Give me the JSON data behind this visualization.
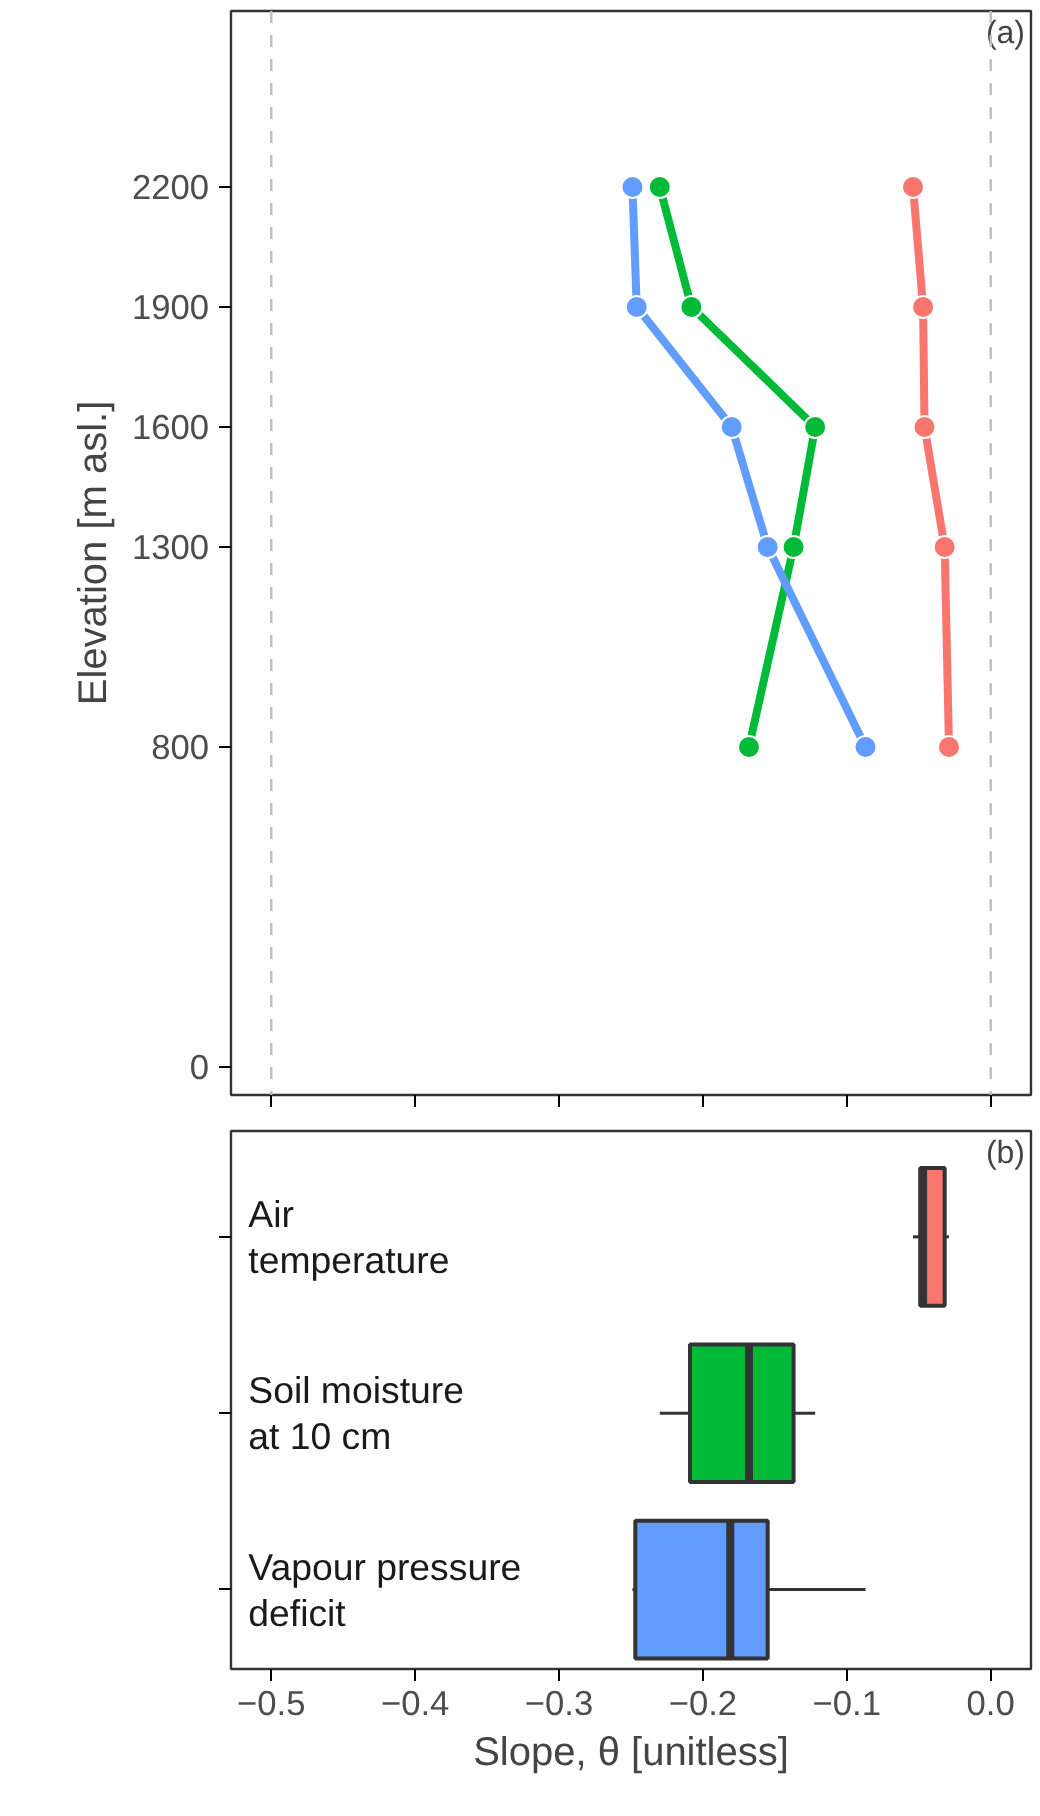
{
  "chart_data": [
    {
      "type": "line",
      "ylabel": "Elevation [m asl.]",
      "annotations": [
        "(a)"
      ],
      "marker": "circle",
      "line_style": "solid",
      "grid": false,
      "tick_labels": "y",
      "xlim": [
        -0.528,
        0.028
      ],
      "xticks": [
        {
          "value": -0.5,
          "label": null
        },
        {
          "value": -0.4,
          "label": null
        },
        {
          "value": -0.3,
          "label": null
        },
        {
          "value": -0.2,
          "label": null
        },
        {
          "value": -0.1,
          "label": null
        },
        {
          "value": 0,
          "label": null
        }
      ],
      "ylim": [
        -70,
        2640
      ],
      "yticks": [
        0,
        800,
        1300,
        1600,
        1900,
        2200
      ],
      "ref_lines": [
        {
          "axis": "x",
          "value": -0.5,
          "color": "#bfbfbf",
          "line_style": "dashed"
        },
        {
          "axis": "x",
          "value": 0,
          "color": "#bfbfbf",
          "line_style": "dashed"
        }
      ],
      "series": [
        {
          "color": "#f8766d",
          "x": [
            -0.054,
            -0.047,
            -0.046,
            -0.032,
            -0.029
          ],
          "values": [
            2200,
            1900,
            1600,
            1300,
            800
          ]
        },
        {
          "color": "#00ba38",
          "x": [
            -0.23,
            -0.208,
            -0.122,
            -0.137,
            -0.168
          ],
          "values": [
            2200,
            1900,
            1600,
            1300,
            800
          ]
        },
        {
          "color": "#619cff",
          "x": [
            -0.249,
            -0.246,
            -0.18,
            -0.155,
            -0.087
          ],
          "values": [
            2200,
            1900,
            1600,
            1300,
            800
          ]
        }
      ]
    },
    {
      "type": "box",
      "orientation": "horizontal",
      "xlabel": "Slope, θ [unitless]",
      "annotations": [
        "(b)"
      ],
      "tick_labels": "x",
      "grid": false,
      "xlim": [
        -0.528,
        0.028
      ],
      "xticks": [
        {
          "value": -0.5,
          "label": "−0.5"
        },
        {
          "value": -0.4,
          "label": "−0.4"
        },
        {
          "value": -0.3,
          "label": "−0.3"
        },
        {
          "value": -0.2,
          "label": "−0.2"
        },
        {
          "value": -0.1,
          "label": "−0.1"
        },
        {
          "value": 0,
          "label": "0.0"
        }
      ],
      "categories": [
        "Air\ntemperature",
        "Soil moisture\nat 10 cm",
        "Vapour pressure\ndeficit"
      ],
      "colors": [
        "#f8766d",
        "#00ba38",
        "#619cff"
      ],
      "boxes": [
        {
          "low": -0.054,
          "q1": -0.049,
          "median": -0.047,
          "q3": -0.032,
          "high": -0.029
        },
        {
          "low": -0.23,
          "q1": -0.209,
          "median": -0.168,
          "q3": -0.137,
          "high": -0.122
        },
        {
          "low": -0.249,
          "q1": -0.247,
          "median": -0.181,
          "q3": -0.155,
          "high": -0.087
        }
      ]
    }
  ]
}
